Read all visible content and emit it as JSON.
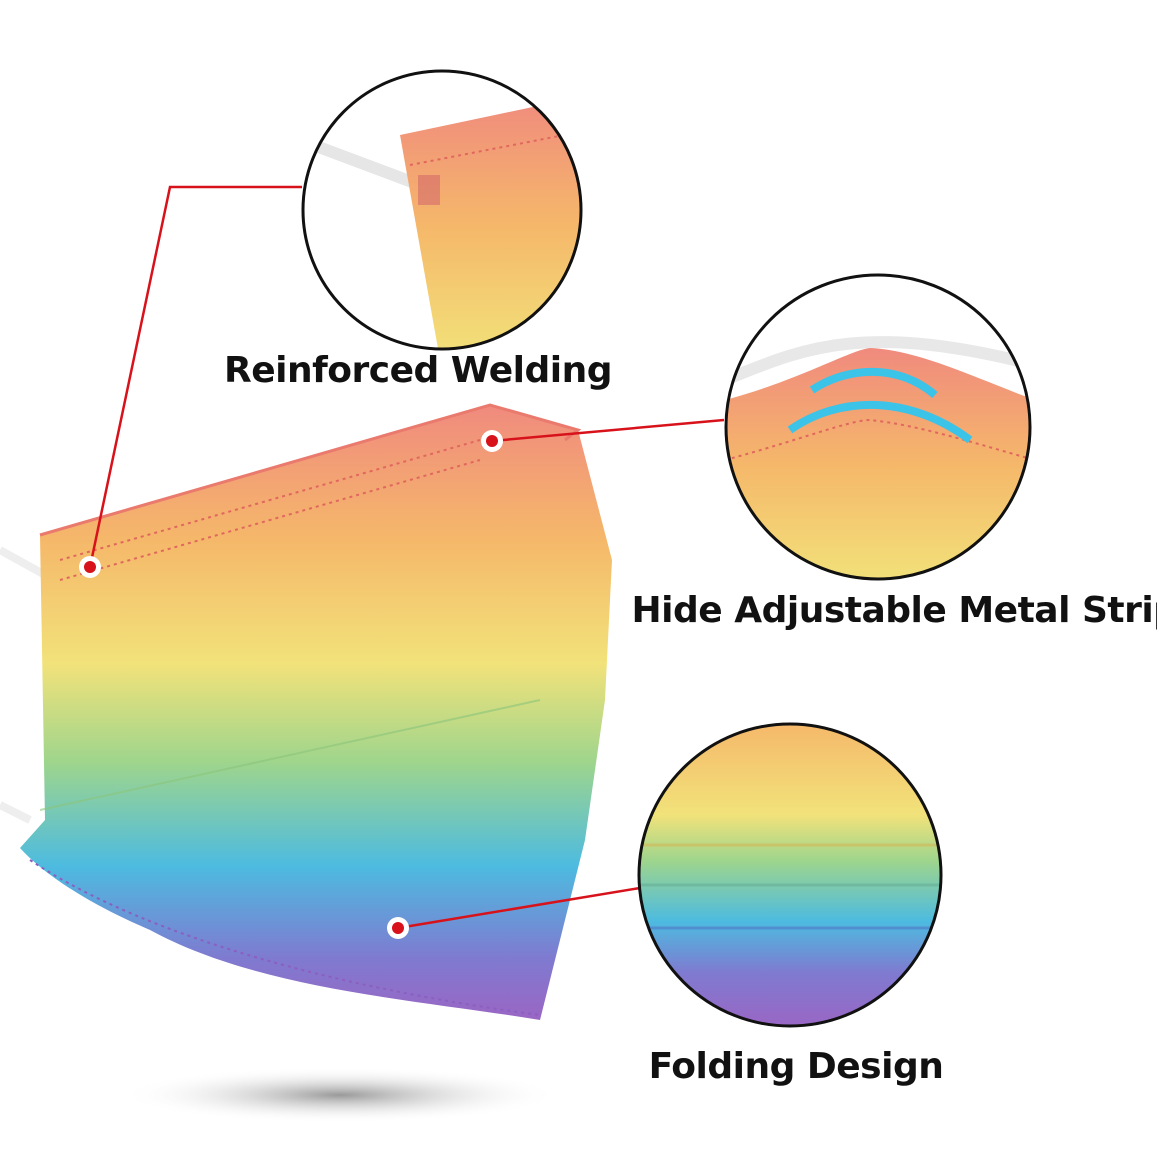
{
  "features": [
    {
      "label": "Reinforced Welding"
    },
    {
      "label": "Hide Adjustable Metal Strip"
    },
    {
      "label": "Folding Design"
    }
  ],
  "colors": {
    "callout_line": "#d8121b",
    "rainbow": [
      "#f08a7e",
      "#f5b86a",
      "#f2e27a",
      "#9fd58c",
      "#4dbbe0",
      "#7f7ad0",
      "#9a66c4"
    ],
    "metal_strip_icon": "#3cc3e8"
  }
}
